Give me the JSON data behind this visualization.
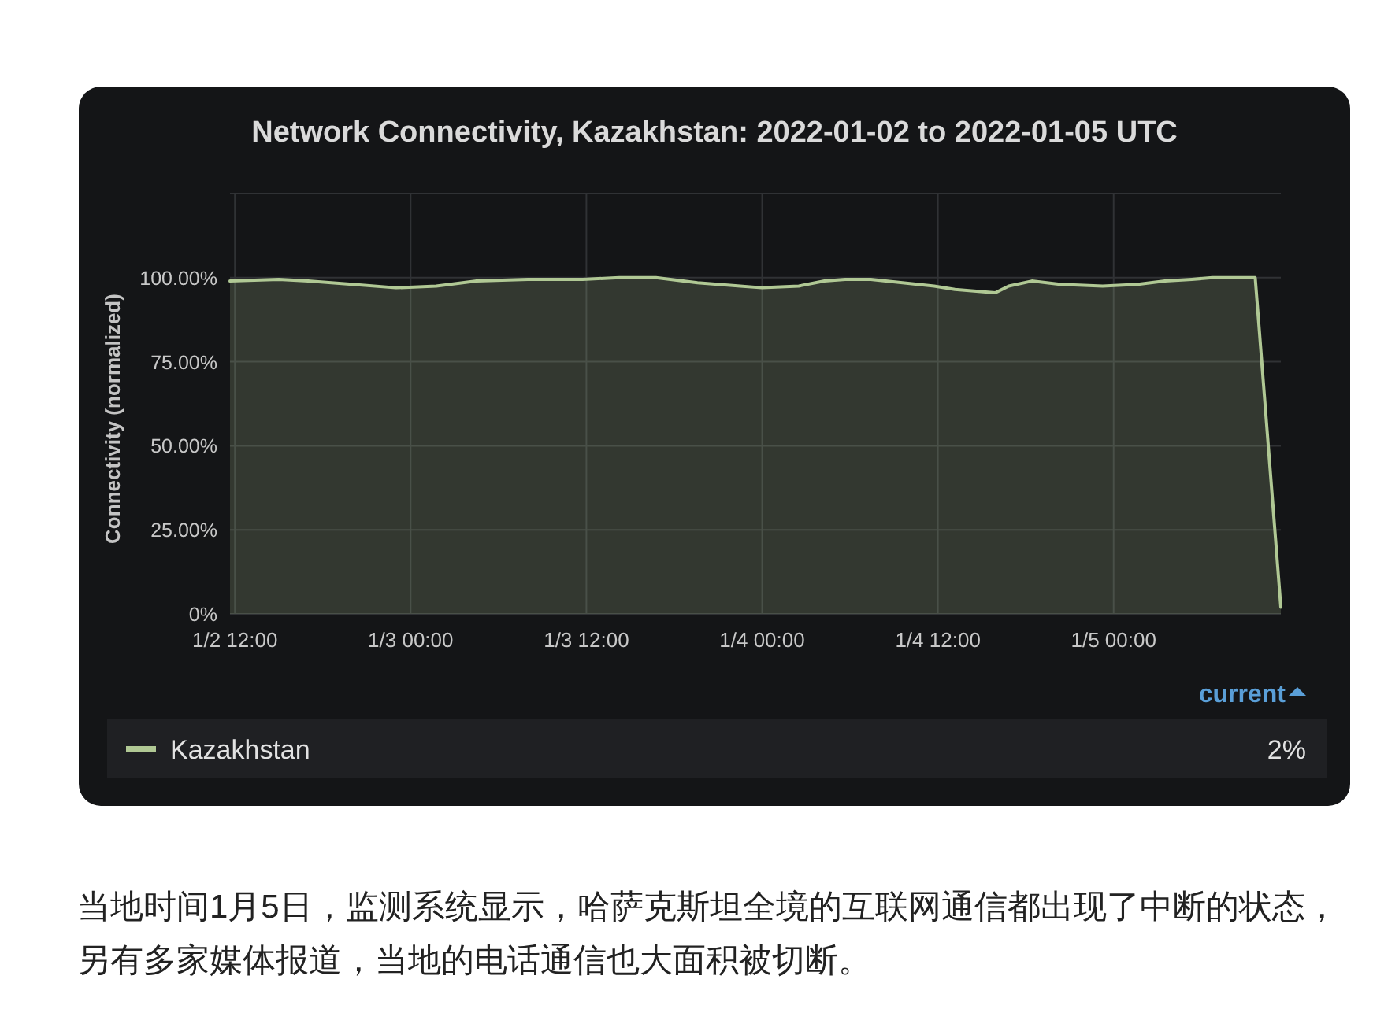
{
  "chart_data": {
    "type": "area",
    "title": "Network Connectivity, Kazakhstan: 2022-01-02 to 2022-01-05 UTC",
    "ylabel": "Connectivity (normalized)",
    "x": [
      "2022-01-02T11:40",
      "2022-01-02T15:00",
      "2022-01-02T17:00",
      "2022-01-02T20:00",
      "2022-01-02T23:00",
      "2022-01-03T01:45",
      "2022-01-03T04:30",
      "2022-01-03T08:00",
      "2022-01-03T11:45",
      "2022-01-03T14:15",
      "2022-01-03T16:45",
      "2022-01-03T19:35",
      "2022-01-03T22:30",
      "2022-01-04T00:00",
      "2022-01-04T02:30",
      "2022-01-04T04:15",
      "2022-01-04T05:40",
      "2022-01-04T07:25",
      "2022-01-04T09:35",
      "2022-01-04T11:45",
      "2022-01-04T13:10",
      "2022-01-04T15:55",
      "2022-01-04T16:50",
      "2022-01-04T18:25",
      "2022-01-04T20:20",
      "2022-01-04T23:15",
      "2022-01-05T01:40",
      "2022-01-05T03:30",
      "2022-01-05T05:20",
      "2022-01-05T06:45",
      "2022-01-05T08:10",
      "2022-01-05T09:40",
      "2022-01-05T11:25"
    ],
    "series": [
      {
        "name": "Kazakhstan",
        "color": "#b0c894",
        "values": [
          99,
          99.5,
          99,
          98,
          97,
          97.5,
          99,
          99.5,
          99.5,
          100,
          100,
          98.5,
          97.5,
          97,
          97.5,
          99,
          99.5,
          99.5,
          98.5,
          97.5,
          96.5,
          95.5,
          97.5,
          99,
          98,
          97.5,
          98,
          99,
          99.5,
          100,
          100,
          100,
          2
        ]
      }
    ],
    "xlim": [
      "2022-01-02T11:40",
      "2022-01-05T11:25"
    ],
    "xticks": [
      {
        "value": "2022-01-02T12:00",
        "label": "1/2 12:00"
      },
      {
        "value": "2022-01-03T00:00",
        "label": "1/3 00:00"
      },
      {
        "value": "2022-01-03T12:00",
        "label": "1/3 12:00"
      },
      {
        "value": "2022-01-04T00:00",
        "label": "1/4 00:00"
      },
      {
        "value": "2022-01-04T12:00",
        "label": "1/4 12:00"
      },
      {
        "value": "2022-01-05T00:00",
        "label": "1/5 00:00"
      }
    ],
    "ylim": [
      0,
      125
    ],
    "yticks": [
      {
        "value": 0,
        "label": "0%"
      },
      {
        "value": 25,
        "label": "25.00%"
      },
      {
        "value": 50,
        "label": "50.00%"
      },
      {
        "value": 75,
        "label": "75.00%"
      },
      {
        "value": 100,
        "label": "100.00%"
      },
      {
        "value": 125,
        "label": null
      }
    ],
    "grid": true,
    "legend": "bottom",
    "annotations": [
      "current",
      "2%",
      "当地时间1月5日，监测系统显示，哈萨克斯坦全境的互联网通信都出现了中断的状态，另有多家媒体报道，当地的电话通信也大面积被切断。"
    ]
  }
}
